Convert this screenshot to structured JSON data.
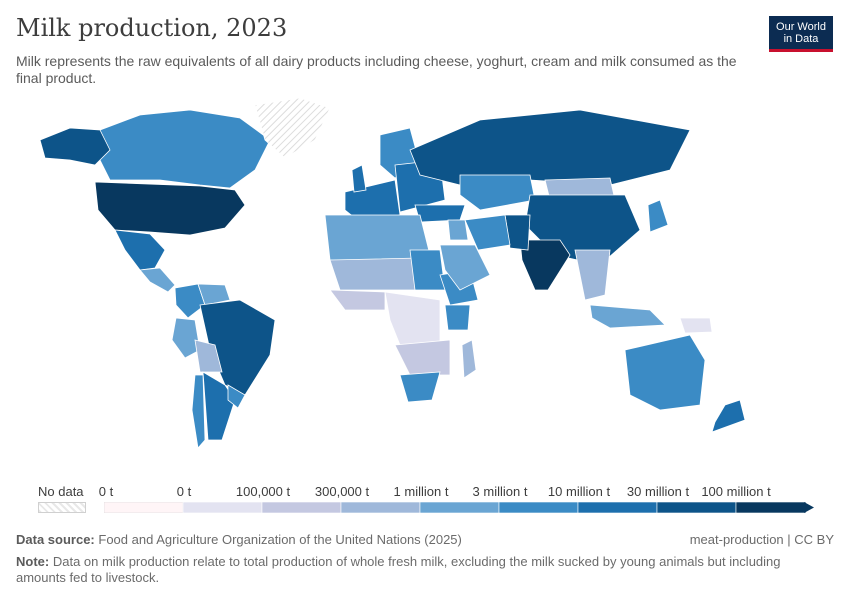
{
  "header": {
    "title": "Milk production, 2023",
    "subtitle": "Milk represents the raw equivalents of all dairy products including cheese, yoghurt, cream and milk consumed as the final product."
  },
  "logo": {
    "line1": "Our World",
    "line2": "in Data"
  },
  "legend": {
    "no_data_label": "No data",
    "bins": [
      {
        "label": "0 t",
        "color": "#fff5f7"
      },
      {
        "label": "0 t",
        "color": "#e3e3f1"
      },
      {
        "label": "100,000 t",
        "color": "#c4c8e1"
      },
      {
        "label": "300,000 t",
        "color": "#9fb8da"
      },
      {
        "label": "1 million t",
        "color": "#6aa5d3"
      },
      {
        "label": "3 million t",
        "color": "#3b8bc5"
      },
      {
        "label": "10 million t",
        "color": "#1d6fad"
      },
      {
        "label": "30 million t",
        "color": "#0d5489"
      },
      {
        "label": "100 million t",
        "color": "#08385f"
      }
    ]
  },
  "footer": {
    "source_label": "Data source:",
    "source_text": "Food and Agriculture Organization of the United Nations (2025)",
    "license": "meat-production | CC BY",
    "note_label": "Note:",
    "note_text": "Data on milk production relate to total production of whole fresh milk, excluding the milk sucked by young animals but including amounts fed to livestock."
  },
  "colors": {
    "no_data": "#e8e8e8",
    "border": "#ffffff"
  },
  "map_regions": [
    {
      "name": "Canada",
      "bin": 5
    },
    {
      "name": "United States",
      "bin": 8
    },
    {
      "name": "Mexico",
      "bin": 6
    },
    {
      "name": "Alaska",
      "bin": 7
    },
    {
      "name": "Greenland",
      "bin": -1
    },
    {
      "name": "Central America",
      "bin": 4
    },
    {
      "name": "Colombia",
      "bin": 5
    },
    {
      "name": "Venezuela",
      "bin": 4
    },
    {
      "name": "Peru",
      "bin": 4
    },
    {
      "name": "Brazil",
      "bin": 7
    },
    {
      "name": "Bolivia",
      "bin": 3
    },
    {
      "name": "Argentina",
      "bin": 6
    },
    {
      "name": "Chile",
      "bin": 5
    },
    {
      "name": "Uruguay",
      "bin": 5
    },
    {
      "name": "Western Europe",
      "bin": 6
    },
    {
      "name": "UK",
      "bin": 6
    },
    {
      "name": "Scandinavia",
      "bin": 5
    },
    {
      "name": "Eastern Europe",
      "bin": 6
    },
    {
      "name": "Russia",
      "bin": 7
    },
    {
      "name": "Kazakhstan",
      "bin": 5
    },
    {
      "name": "Mongolia",
      "bin": 3
    },
    {
      "name": "China",
      "bin": 7
    },
    {
      "name": "India",
      "bin": 8
    },
    {
      "name": "Pakistan",
      "bin": 7
    },
    {
      "name": "Iran",
      "bin": 5
    },
    {
      "name": "Turkey",
      "bin": 6
    },
    {
      "name": "Japan",
      "bin": 5
    },
    {
      "name": "Southeast Asia",
      "bin": 3
    },
    {
      "name": "Indonesia",
      "bin": 4
    },
    {
      "name": "Papua New Guinea",
      "bin": 1
    },
    {
      "name": "Australia",
      "bin": 5
    },
    {
      "name": "New Zealand",
      "bin": 6
    },
    {
      "name": "North Africa",
      "bin": 4
    },
    {
      "name": "Sahel",
      "bin": 3
    },
    {
      "name": "West Africa",
      "bin": 2
    },
    {
      "name": "Central Africa",
      "bin": 1
    },
    {
      "name": "Sudan",
      "bin": 5
    },
    {
      "name": "Ethiopia",
      "bin": 5
    },
    {
      "name": "Kenya",
      "bin": 5
    },
    {
      "name": "Southern Africa",
      "bin": 2
    },
    {
      "name": "South Africa",
      "bin": 5
    },
    {
      "name": "Madagascar",
      "bin": 3
    },
    {
      "name": "Arabian Peninsula",
      "bin": 4
    },
    {
      "name": "Iraq",
      "bin": 4
    }
  ]
}
